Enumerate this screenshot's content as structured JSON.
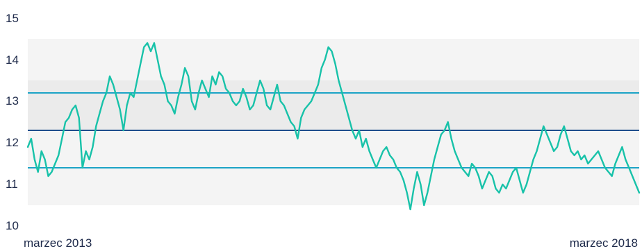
{
  "chart_data": {
    "type": "line",
    "title": "",
    "xlabel": "",
    "ylabel": "",
    "x_start_label": "marzec 2013",
    "x_end_label": "marzec 2018",
    "ylim": [
      10,
      15
    ],
    "yticks": [
      "10",
      "11",
      "12",
      "13",
      "14",
      "15"
    ],
    "reference_lines": [
      {
        "value": 13.2,
        "color": "#1ba3c6"
      },
      {
        "value": 12.3,
        "color": "#1f4e8c"
      },
      {
        "value": 11.4,
        "color": "#1ba3c6"
      }
    ],
    "bands": [
      {
        "from": 10.5,
        "to": 14.5,
        "color": "#f4f4f4"
      },
      {
        "from": 12.3,
        "to": 13.5,
        "color": "#ebebeb"
      }
    ],
    "series": [
      {
        "color": "#18c2a9",
        "values": [
          11.9,
          12.1,
          11.6,
          11.3,
          11.8,
          11.6,
          11.2,
          11.3,
          11.5,
          11.7,
          12.1,
          12.5,
          12.6,
          12.8,
          12.9,
          12.6,
          11.4,
          11.8,
          11.6,
          11.9,
          12.4,
          12.7,
          13.0,
          13.2,
          13.6,
          13.4,
          13.1,
          12.8,
          12.3,
          12.9,
          13.2,
          13.1,
          13.5,
          13.9,
          14.3,
          14.4,
          14.2,
          14.4,
          14.0,
          13.6,
          13.4,
          13.0,
          12.9,
          12.7,
          13.1,
          13.4,
          13.8,
          13.6,
          13.0,
          12.8,
          13.2,
          13.5,
          13.3,
          13.1,
          13.6,
          13.4,
          13.7,
          13.6,
          13.3,
          13.2,
          13.0,
          12.9,
          13.0,
          13.3,
          13.1,
          12.8,
          12.9,
          13.2,
          13.5,
          13.3,
          12.9,
          12.8,
          13.1,
          13.4,
          13.0,
          12.9,
          12.7,
          12.5,
          12.4,
          12.1,
          12.6,
          12.8,
          12.9,
          13.0,
          13.2,
          13.4,
          13.8,
          14.0,
          14.3,
          14.2,
          13.9,
          13.5,
          13.2,
          12.9,
          12.6,
          12.3,
          12.1,
          12.3,
          11.9,
          12.1,
          11.8,
          11.6,
          11.4,
          11.6,
          11.8,
          11.9,
          11.7,
          11.6,
          11.4,
          11.3,
          11.1,
          10.8,
          10.4,
          10.9,
          11.3,
          11.0,
          10.5,
          10.8,
          11.2,
          11.6,
          11.9,
          12.2,
          12.3,
          12.5,
          12.1,
          11.8,
          11.6,
          11.4,
          11.3,
          11.2,
          11.5,
          11.4,
          11.2,
          10.9,
          11.1,
          11.3,
          11.2,
          10.9,
          10.8,
          11.0,
          10.9,
          11.1,
          11.3,
          11.4,
          11.1,
          10.8,
          11.0,
          11.3,
          11.6,
          11.8,
          12.1,
          12.4,
          12.2,
          12.0,
          11.8,
          11.9,
          12.2,
          12.4,
          12.1,
          11.8,
          11.7,
          11.8,
          11.6,
          11.7,
          11.5,
          11.6,
          11.7,
          11.8,
          11.6,
          11.4,
          11.3,
          11.2,
          11.5,
          11.7,
          11.9,
          11.6,
          11.4,
          11.2,
          11.0,
          10.8
        ]
      }
    ]
  }
}
